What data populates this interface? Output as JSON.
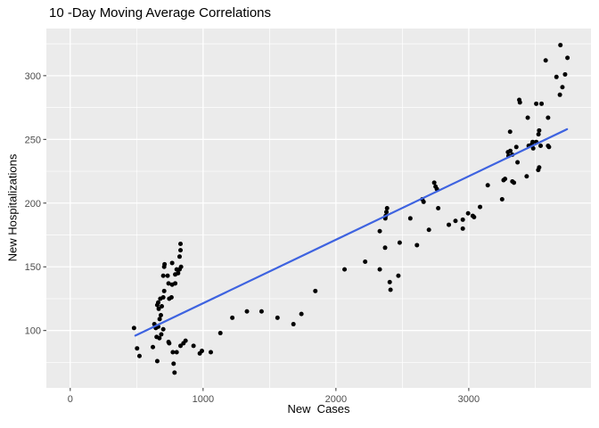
{
  "title": "10 -Day Moving Average Correlations",
  "chart_data": {
    "type": "scatter",
    "title": "10 -Day Moving Average Correlations",
    "xlabel": "New  Cases",
    "ylabel": "New Hospitalizations",
    "xlim": [
      -180,
      3920
    ],
    "ylim": [
      55,
      337
    ],
    "x_major_ticks": [
      0,
      1000,
      2000,
      3000
    ],
    "x_minor_ticks": [
      500,
      1500,
      2500,
      3500
    ],
    "y_major_ticks": [
      100,
      150,
      200,
      250,
      300
    ],
    "y_minor_ticks": [
      75,
      125,
      175,
      225,
      275,
      325
    ],
    "grid": true,
    "legend": "none",
    "colors": {
      "panel_bg": "#EBEBEB",
      "grid": "#FFFFFF",
      "point": "#000000",
      "trend": "#3E63E0",
      "tick_label": "#4D4D4D",
      "tick_mark": "#333333"
    },
    "trend_line": {
      "x1": 490,
      "y1": 96,
      "x2": 3740,
      "y2": 258
    },
    "points": [
      [
        480,
        102
      ],
      [
        503,
        86
      ],
      [
        521,
        80
      ],
      [
        622,
        87
      ],
      [
        633,
        105
      ],
      [
        644,
        102
      ],
      [
        650,
        95
      ],
      [
        655,
        76
      ],
      [
        655,
        120
      ],
      [
        662,
        122
      ],
      [
        662,
        103
      ],
      [
        666,
        117
      ],
      [
        671,
        94
      ],
      [
        673,
        109
      ],
      [
        678,
        125
      ],
      [
        682,
        112
      ],
      [
        685,
        97
      ],
      [
        689,
        119
      ],
      [
        700,
        143
      ],
      [
        700,
        126
      ],
      [
        700,
        101
      ],
      [
        707,
        150
      ],
      [
        707,
        131
      ],
      [
        710,
        152
      ],
      [
        733,
        143
      ],
      [
        740,
        137
      ],
      [
        740,
        91
      ],
      [
        745,
        125
      ],
      [
        745,
        90
      ],
      [
        762,
        126
      ],
      [
        767,
        153
      ],
      [
        767,
        136
      ],
      [
        772,
        83
      ],
      [
        778,
        74
      ],
      [
        785,
        67
      ],
      [
        790,
        144
      ],
      [
        790,
        137
      ],
      [
        801,
        148
      ],
      [
        801,
        83
      ],
      [
        812,
        145
      ],
      [
        823,
        158
      ],
      [
        823,
        148
      ],
      [
        830,
        168
      ],
      [
        830,
        163
      ],
      [
        830,
        88
      ],
      [
        834,
        150
      ],
      [
        852,
        90
      ],
      [
        868,
        92
      ],
      [
        928,
        88
      ],
      [
        975,
        82
      ],
      [
        991,
        84
      ],
      [
        1058,
        83
      ],
      [
        1130,
        98
      ],
      [
        1220,
        110
      ],
      [
        1330,
        115
      ],
      [
        1440,
        115
      ],
      [
        1560,
        110
      ],
      [
        1680,
        105
      ],
      [
        1740,
        113
      ],
      [
        1845,
        131
      ],
      [
        2065,
        148
      ],
      [
        2220,
        154
      ],
      [
        2330,
        148
      ],
      [
        2405,
        138
      ],
      [
        2411,
        132
      ],
      [
        2470,
        143
      ],
      [
        2330,
        178
      ],
      [
        2370,
        165
      ],
      [
        2372,
        188
      ],
      [
        2375,
        190
      ],
      [
        2380,
        193
      ],
      [
        2385,
        196
      ],
      [
        2480,
        169
      ],
      [
        2560,
        188
      ],
      [
        2610,
        167
      ],
      [
        2650,
        203
      ],
      [
        2660,
        201
      ],
      [
        2700,
        179
      ],
      [
        2740,
        216
      ],
      [
        2750,
        213
      ],
      [
        2760,
        211
      ],
      [
        2770,
        196
      ],
      [
        2850,
        183
      ],
      [
        2900,
        186
      ],
      [
        2955,
        187
      ],
      [
        2955,
        180
      ],
      [
        2995,
        192
      ],
      [
        3030,
        190
      ],
      [
        3040,
        189
      ],
      [
        3085,
        197
      ],
      [
        3143,
        214
      ],
      [
        3251,
        203
      ],
      [
        3262,
        218
      ],
      [
        3273,
        219
      ],
      [
        3295,
        240
      ],
      [
        3299,
        237
      ],
      [
        3311,
        256
      ],
      [
        3313,
        241
      ],
      [
        3328,
        238
      ],
      [
        3328,
        217
      ],
      [
        3340,
        216
      ],
      [
        3358,
        244
      ],
      [
        3367,
        232
      ],
      [
        3380,
        281
      ],
      [
        3385,
        279
      ],
      [
        3436,
        221
      ],
      [
        3444,
        267
      ],
      [
        3451,
        245
      ],
      [
        3474,
        246
      ],
      [
        3481,
        248
      ],
      [
        3485,
        243
      ],
      [
        3508,
        278
      ],
      [
        3508,
        248
      ],
      [
        3523,
        226
      ],
      [
        3525,
        254
      ],
      [
        3530,
        257
      ],
      [
        3530,
        228
      ],
      [
        3541,
        245
      ],
      [
        3548,
        278
      ],
      [
        3579,
        312
      ],
      [
        3597,
        267
      ],
      [
        3597,
        245
      ],
      [
        3604,
        244
      ],
      [
        3660,
        299
      ],
      [
        3686,
        285
      ],
      [
        3690,
        324
      ],
      [
        3705,
        291
      ],
      [
        3725,
        301
      ],
      [
        3743,
        314
      ]
    ]
  }
}
